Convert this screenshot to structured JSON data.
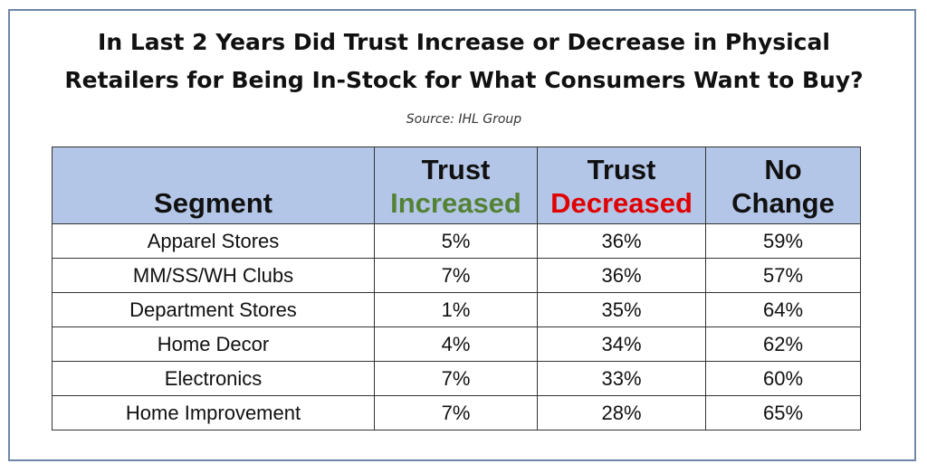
{
  "chart_data": {
    "type": "table",
    "title_line1": "In Last 2 Years Did Trust Increase or Decrease in Physical",
    "title_line2": "Retailers for Being In-Stock for What Consumers Want to Buy?",
    "source": "Source: IHL Group",
    "headers": {
      "segment": "Segment",
      "increased_top": "Trust",
      "increased_bottom": "Increased",
      "decreased_top": "Trust",
      "decreased_bottom": "Decreased",
      "nochange_top": "No",
      "nochange_bottom": "Change"
    },
    "colors": {
      "header_bg": "#b4c6e7",
      "increased": "#548235",
      "decreased": "#e00000",
      "frame": "#6f87a8"
    },
    "rows": [
      {
        "segment": "Apparel Stores",
        "increased": "5%",
        "decreased": "36%",
        "no_change": "59%"
      },
      {
        "segment": "MM/SS/WH Clubs",
        "increased": "7%",
        "decreased": "36%",
        "no_change": "57%"
      },
      {
        "segment": "Department Stores",
        "increased": "1%",
        "decreased": "35%",
        "no_change": "64%"
      },
      {
        "segment": "Home Decor",
        "increased": "4%",
        "decreased": "34%",
        "no_change": "62%"
      },
      {
        "segment": "Electronics",
        "increased": "7%",
        "decreased": "33%",
        "no_change": "60%"
      },
      {
        "segment": "Home Improvement",
        "increased": "7%",
        "decreased": "28%",
        "no_change": "65%"
      }
    ]
  }
}
